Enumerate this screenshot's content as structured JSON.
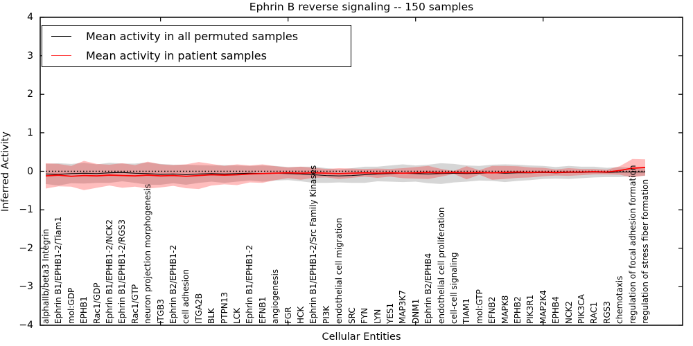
{
  "chart_data": {
    "type": "line",
    "title": "Ephrin B reverse signaling -- 150 samples",
    "xlabel": "Cellular Entities",
    "ylabel": "Inferred Activity",
    "ylim": [
      -4,
      4
    ],
    "yticks": [
      -4,
      -3,
      -2,
      -1,
      0,
      1,
      2,
      3,
      4
    ],
    "yticklabels": [
      "−4",
      "−3",
      "−2",
      "−1",
      "0",
      "1",
      "2",
      "3",
      "4"
    ],
    "xtick_positions": [
      9,
      19,
      29,
      39
    ],
    "grid": false,
    "legend_position": "upper left",
    "zero_line": {
      "y": 0,
      "style": "dotted",
      "color": "#000000"
    },
    "categories": [
      "alphaIIb/beta3 Integrin",
      "Ephrin B1/EPHB1-2/Tiam1",
      "mol:GDP",
      "EPHB1",
      "Rac1/GDP",
      "Ephrin B1/EPHB1-2/NCK2",
      "Ephrin B1/EPHB1-2/RGS3",
      "Rac1/GTP",
      "neuron projection morphogenesis",
      "ITGB3",
      "Ephrin B2/EPHB1-2",
      "cell adhesion",
      "ITGA2B",
      "BLK",
      "PTPN13",
      "LCK",
      "Ephrin B1/EPHB1-2",
      "EFNB1",
      "angiogenesis",
      "FGR",
      "HCK",
      "Ephrin B1/EPHB1-2/Src Family Kinases",
      "PI3K",
      "endothelial cell migration",
      "SRC",
      "FYN",
      "LYN",
      "YES1",
      "MAP3K7",
      "DNM1",
      "Ephrin B2/EPHB4",
      "endothelial cell proliferation",
      "cell-cell signaling",
      "TIAM1",
      "mol:GTP",
      "EFNB2",
      "MAPK8",
      "EPHB2",
      "PIK3R1",
      "MAP2K4",
      "EPHB4",
      "NCK2",
      "PIK3CA",
      "RAC1",
      "RGS3",
      "chemotaxis",
      "regulation of focal adhesion formation",
      "regulation of stress fiber formation"
    ],
    "series": [
      {
        "name": "Mean activity in all permuted samples",
        "color": "#000000",
        "line_width": 1.1,
        "band_color": "rgba(120,120,120,0.30)",
        "values": [
          -0.07,
          -0.08,
          -0.06,
          -0.05,
          -0.06,
          -0.04,
          -0.03,
          -0.05,
          -0.06,
          -0.08,
          -0.07,
          -0.09,
          -0.07,
          -0.06,
          -0.07,
          -0.06,
          -0.05,
          -0.06,
          -0.05,
          -0.06,
          -0.07,
          -0.09,
          -0.11,
          -0.12,
          -0.11,
          -0.09,
          -0.07,
          -0.06,
          -0.05,
          -0.06,
          -0.07,
          -0.06,
          -0.05,
          -0.06,
          -0.05,
          -0.04,
          -0.05,
          -0.04,
          -0.04,
          -0.03,
          -0.04,
          -0.03,
          -0.03,
          -0.02,
          -0.03,
          -0.02,
          -0.02,
          -0.02
        ],
        "band": [
          0.26,
          0.29,
          0.25,
          0.27,
          0.24,
          0.26,
          0.23,
          0.25,
          0.29,
          0.27,
          0.24,
          0.26,
          0.23,
          0.21,
          0.23,
          0.21,
          0.19,
          0.21,
          0.19,
          0.17,
          0.19,
          0.21,
          0.19,
          0.17,
          0.19,
          0.21,
          0.19,
          0.21,
          0.23,
          0.21,
          0.24,
          0.27,
          0.24,
          0.21,
          0.19,
          0.21,
          0.23,
          0.21,
          0.19,
          0.17,
          0.15,
          0.17,
          0.15,
          0.14,
          0.12,
          0.13,
          0.11,
          0.1
        ]
      },
      {
        "name": "Mean activity in patient samples",
        "color": "#ff0000",
        "line_width": 1.8,
        "band_color": "rgba(255,0,0,0.26)",
        "values": [
          -0.12,
          -0.1,
          -0.13,
          -0.11,
          -0.12,
          -0.1,
          -0.11,
          -0.12,
          -0.1,
          -0.12,
          -0.11,
          -0.13,
          -0.11,
          -0.09,
          -0.1,
          -0.09,
          -0.07,
          -0.06,
          -0.05,
          -0.04,
          -0.05,
          -0.04,
          -0.05,
          -0.06,
          -0.05,
          -0.04,
          -0.05,
          -0.04,
          -0.05,
          -0.04,
          -0.03,
          -0.04,
          -0.03,
          -0.04,
          -0.03,
          -0.04,
          -0.03,
          -0.02,
          -0.03,
          -0.02,
          -0.03,
          -0.02,
          -0.02,
          -0.01,
          -0.02,
          0.02,
          0.08,
          0.1
        ],
        "band": [
          0.33,
          0.29,
          0.27,
          0.38,
          0.31,
          0.27,
          0.32,
          0.28,
          0.35,
          0.3,
          0.27,
          0.31,
          0.35,
          0.28,
          0.24,
          0.27,
          0.22,
          0.24,
          0.18,
          0.14,
          0.17,
          0.13,
          0.11,
          0.14,
          0.12,
          0.1,
          0.12,
          0.1,
          0.13,
          0.15,
          0.17,
          0.1,
          0.04,
          0.17,
          0.06,
          0.18,
          0.17,
          0.15,
          0.13,
          0.11,
          0.08,
          0.1,
          0.08,
          0.07,
          0.06,
          0.11,
          0.24,
          0.21
        ]
      }
    ]
  }
}
